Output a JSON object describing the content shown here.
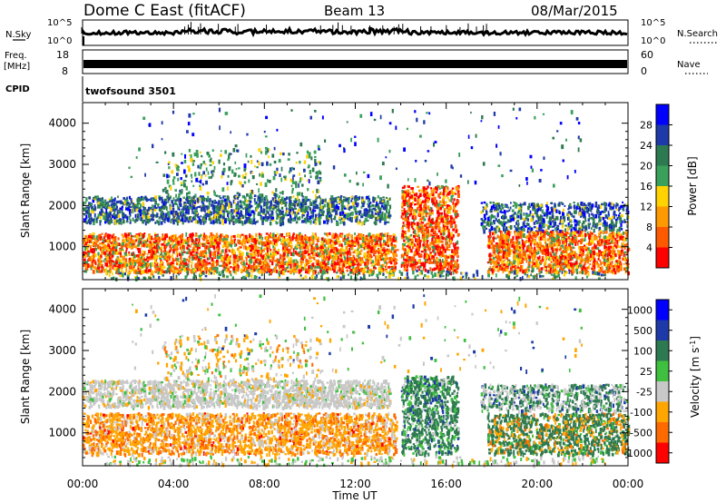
{
  "header": {
    "radar": "Dome C East (fitACF)",
    "beam": "Beam 13",
    "date": "08/Mar/2015"
  },
  "panels": {
    "nsky": {
      "left_label": "N.Sky",
      "left_ticks": [
        "10^5",
        "10^0"
      ],
      "right_label": "N.Search",
      "right_ticks": [
        "10^5",
        "10^0"
      ]
    },
    "freq": {
      "left_label": "Freq.",
      "left_unit": "[MHz]",
      "left_ticks": [
        "18",
        "8"
      ],
      "right_label": "Nave",
      "right_ticks": [
        "60",
        "0"
      ]
    },
    "cpid": {
      "label": "CPID",
      "text": "twofsound  3501"
    }
  },
  "colors": {
    "power_scale": [
      "#0000ff",
      "#1e3aa8",
      "#2e7a50",
      "#3aa05a",
      "#ffd200",
      "#ff9900",
      "#ff5a00",
      "#ff0000"
    ],
    "velocity_scale": [
      "#0000ff",
      "#1e3aa8",
      "#2e7a50",
      "#3fc03f",
      "#c8c8c8",
      "#ffa500",
      "#ff6a00",
      "#ff0000"
    ]
  },
  "chart_data": [
    {
      "type": "heatmap",
      "name": "power",
      "xlabel": "",
      "ylabel": "Slant Range [km]",
      "xlim": [
        "00:00",
        "00:00"
      ],
      "ylim": [
        200,
        4500
      ],
      "x_tick_labels": [
        "00:00",
        "04:00",
        "08:00",
        "12:00",
        "16:00",
        "20:00",
        "00:00"
      ],
      "y_tick_labels": [
        "1000",
        "2000",
        "3000",
        "4000"
      ],
      "colorbar": {
        "label": "Power [dB]",
        "tick_labels": [
          "4",
          "8",
          "12",
          "16",
          "20",
          "24",
          "28"
        ],
        "range": [
          0,
          32
        ]
      }
    },
    {
      "type": "heatmap",
      "name": "velocity",
      "xlabel": "Time UT",
      "ylabel": "Slant Range [km]",
      "xlim": [
        "00:00",
        "00:00"
      ],
      "ylim": [
        200,
        4500
      ],
      "x_tick_labels": [
        "00:00",
        "04:00",
        "08:00",
        "12:00",
        "16:00",
        "20:00",
        "00:00"
      ],
      "y_tick_labels": [
        "1000",
        "2000",
        "3000",
        "4000"
      ],
      "colorbar": {
        "label": "Velocity [m s^-1]",
        "tick_labels": [
          "1000",
          "500",
          "100",
          "25",
          "-25",
          "-100",
          "-500",
          "-1000"
        ]
      }
    }
  ]
}
